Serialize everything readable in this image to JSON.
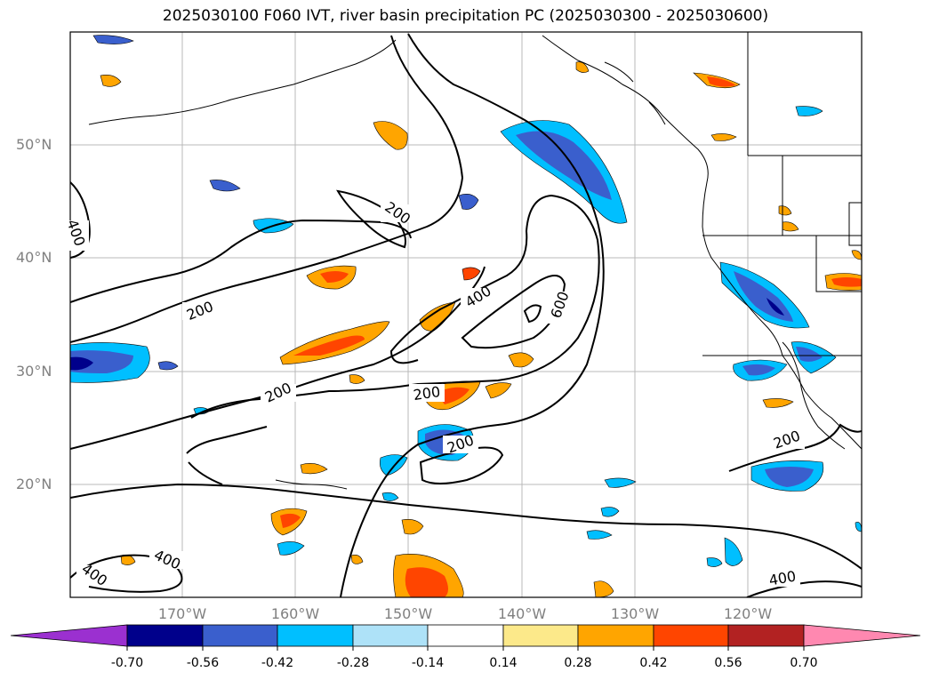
{
  "title": "2025030100 F060 IVT, river basin precipitation PC (2025030300 - 2025030600)",
  "map": {
    "lat_labels": [
      "50°N",
      "40°N",
      "30°N",
      "20°N"
    ],
    "lon_labels": [
      "170°W",
      "160°W",
      "150°W",
      "140°W",
      "130°W",
      "120°W"
    ],
    "contour_labels": [
      "400",
      "200",
      "200",
      "200",
      "400",
      "600",
      "200",
      "200",
      "200",
      "400",
      "400",
      "400"
    ]
  },
  "colorbar": {
    "tick_labels": [
      "-0.70",
      "-0.56",
      "-0.42",
      "-0.28",
      "-0.14",
      "0.14",
      "0.28",
      "0.42",
      "0.56",
      "0.70"
    ],
    "colors": [
      "#9b30d0",
      "#00008b",
      "#3a5fcd",
      "#00bfff",
      "#aee2f8",
      "#ffffff",
      "#fce98a",
      "#ffa500",
      "#ff4500",
      "#b22222",
      "#ff88b0"
    ]
  }
}
